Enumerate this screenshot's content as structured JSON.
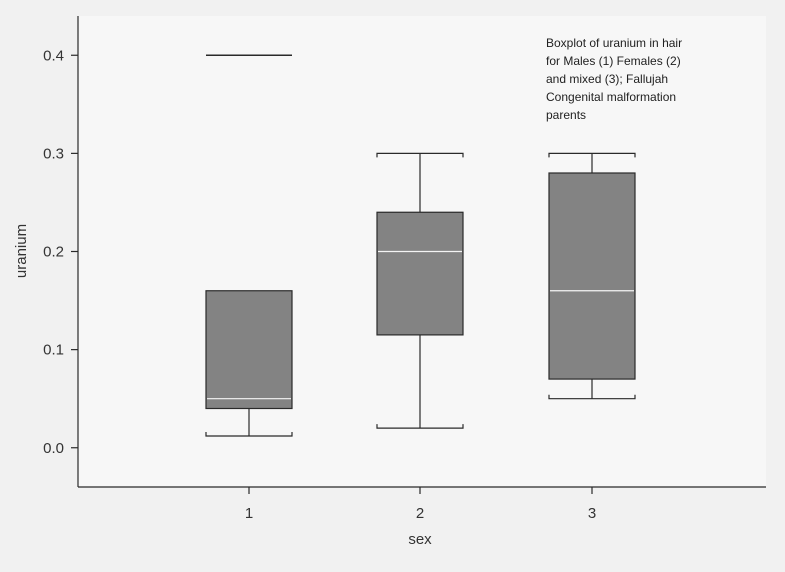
{
  "chart_data": {
    "type": "boxplot",
    "title": "",
    "annotation_lines": [
      "Boxplot of uranium in hair",
      "for Males (1) Females (2)",
      "and mixed (3); Fallujah",
      "Congenital malformation",
      "parents"
    ],
    "xlabel": "sex",
    "ylabel": "uranium",
    "categories": [
      "1",
      "2",
      "3"
    ],
    "ylim": [
      -0.04,
      0.44
    ],
    "y_ticks": [
      0.0,
      0.1,
      0.2,
      0.3,
      0.4
    ],
    "y_tick_labels": [
      "0.0",
      "0.1",
      "0.2",
      "0.3",
      "0.4"
    ],
    "boxes": [
      {
        "category": "1",
        "whisker_low": 0.012,
        "q1": 0.04,
        "median": 0.05,
        "q3": 0.16,
        "whisker_high": 0.16,
        "outliers": [
          0.4
        ]
      },
      {
        "category": "2",
        "whisker_low": 0.02,
        "q1": 0.115,
        "median": 0.2,
        "q3": 0.24,
        "whisker_high": 0.3,
        "outliers": []
      },
      {
        "category": "3",
        "whisker_low": 0.05,
        "q1": 0.07,
        "median": 0.16,
        "q3": 0.28,
        "whisker_high": 0.3,
        "outliers": []
      }
    ],
    "colors": {
      "box_fill": "#838383",
      "median": "#f4f4f4",
      "line": "#2a2a2a",
      "plot_bg": "#f7f7f7"
    },
    "grid": false
  }
}
